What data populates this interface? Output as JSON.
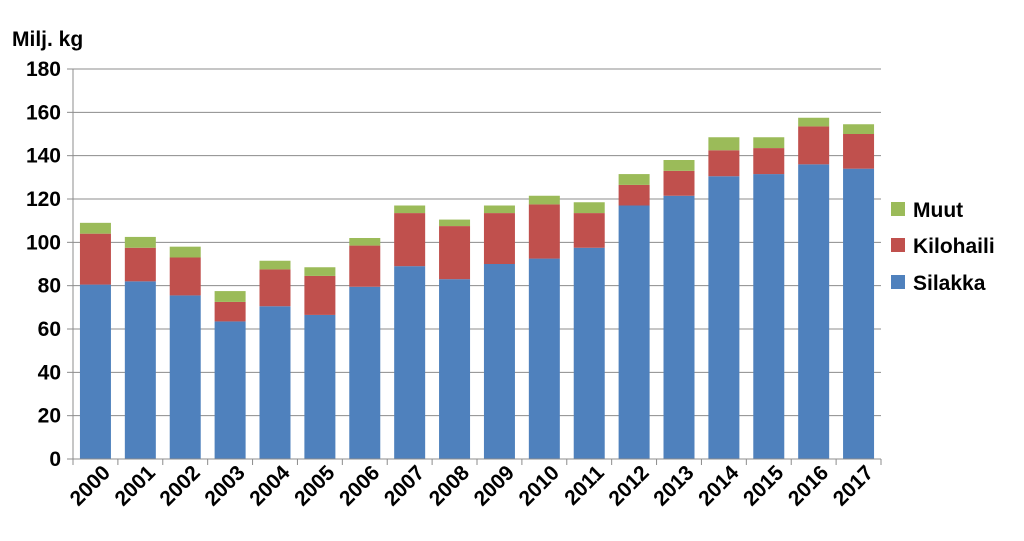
{
  "chart_data": {
    "type": "bar",
    "stacked": true,
    "ylabel": "Milj. kg",
    "ylim": [
      0,
      180
    ],
    "yticks": [
      "0",
      "20",
      "40",
      "60",
      "80",
      "100",
      "120",
      "140",
      "160",
      "180"
    ],
    "grid": true,
    "legend_position": "right",
    "categories": [
      "2000",
      "2001",
      "2002",
      "2003",
      "2004",
      "2005",
      "2006",
      "2007",
      "2008",
      "2009",
      "2010",
      "2011",
      "2012",
      "2013",
      "2014",
      "2015",
      "2016",
      "2017"
    ],
    "series": [
      {
        "name": "Silakka",
        "color": "#4F81BD",
        "values": [
          80.5,
          82,
          75.5,
          63.5,
          70.5,
          66.5,
          79.5,
          89,
          83,
          90,
          92.5,
          97.5,
          117,
          121.5,
          130.5,
          131.5,
          136,
          134
        ]
      },
      {
        "name": "Kilohaili",
        "color": "#C0504D",
        "values": [
          23.5,
          15.5,
          17.5,
          9,
          17,
          18,
          19,
          24.5,
          24.5,
          23.5,
          25,
          16,
          9.5,
          11.5,
          12,
          12,
          17.5,
          16
        ]
      },
      {
        "name": "Muut",
        "color": "#9BBB59",
        "values": [
          5,
          5,
          5,
          5,
          4,
          4,
          3.5,
          3.5,
          3,
          3.5,
          4,
          5,
          5,
          5,
          6,
          5,
          4,
          4.5
        ]
      }
    ],
    "legend_order": [
      "Muut",
      "Kilohaili",
      "Silakka"
    ]
  }
}
